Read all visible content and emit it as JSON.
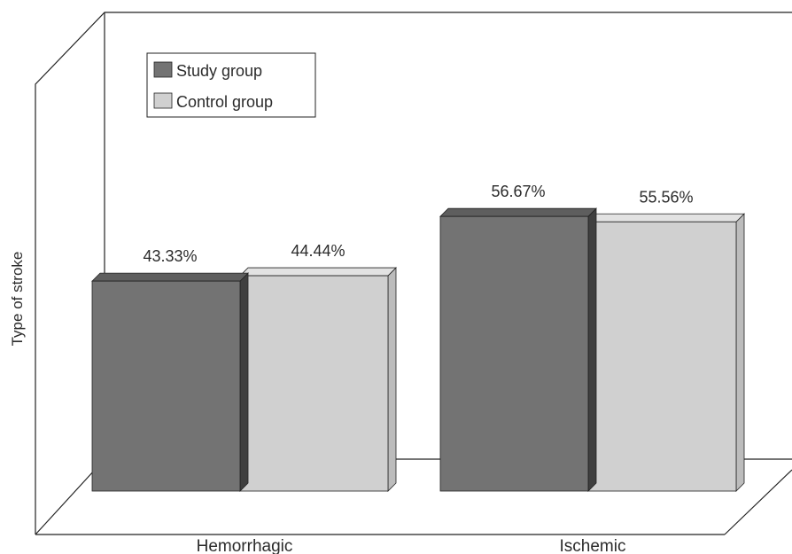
{
  "chart_data": {
    "type": "bar",
    "title": "",
    "xlabel": "",
    "ylabel": "Type of stroke",
    "ylim": [
      0,
      75
    ],
    "grid": false,
    "legend_position": "top-left",
    "categories": [
      "Hemorrhagic",
      "Ischemic"
    ],
    "series": [
      {
        "name": "Study group",
        "values": [
          43.33,
          56.67
        ],
        "labels": [
          "43.33%",
          "56.67%"
        ],
        "color": "#737373"
      },
      {
        "name": "Control group",
        "values": [
          44.44,
          55.56
        ],
        "labels": [
          "44.44%",
          "55.56%"
        ],
        "color": "#d0d0d0"
      }
    ]
  }
}
